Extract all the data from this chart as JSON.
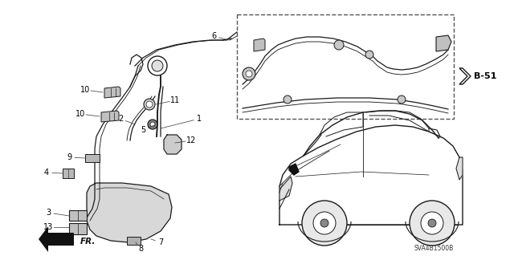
{
  "bg_color": "#ffffff",
  "line_color": "#1a1a1a",
  "diagram_code": "SVA4B1500B",
  "ref_label": "B-51",
  "fig_width": 6.4,
  "fig_height": 3.19,
  "dpi": 100
}
